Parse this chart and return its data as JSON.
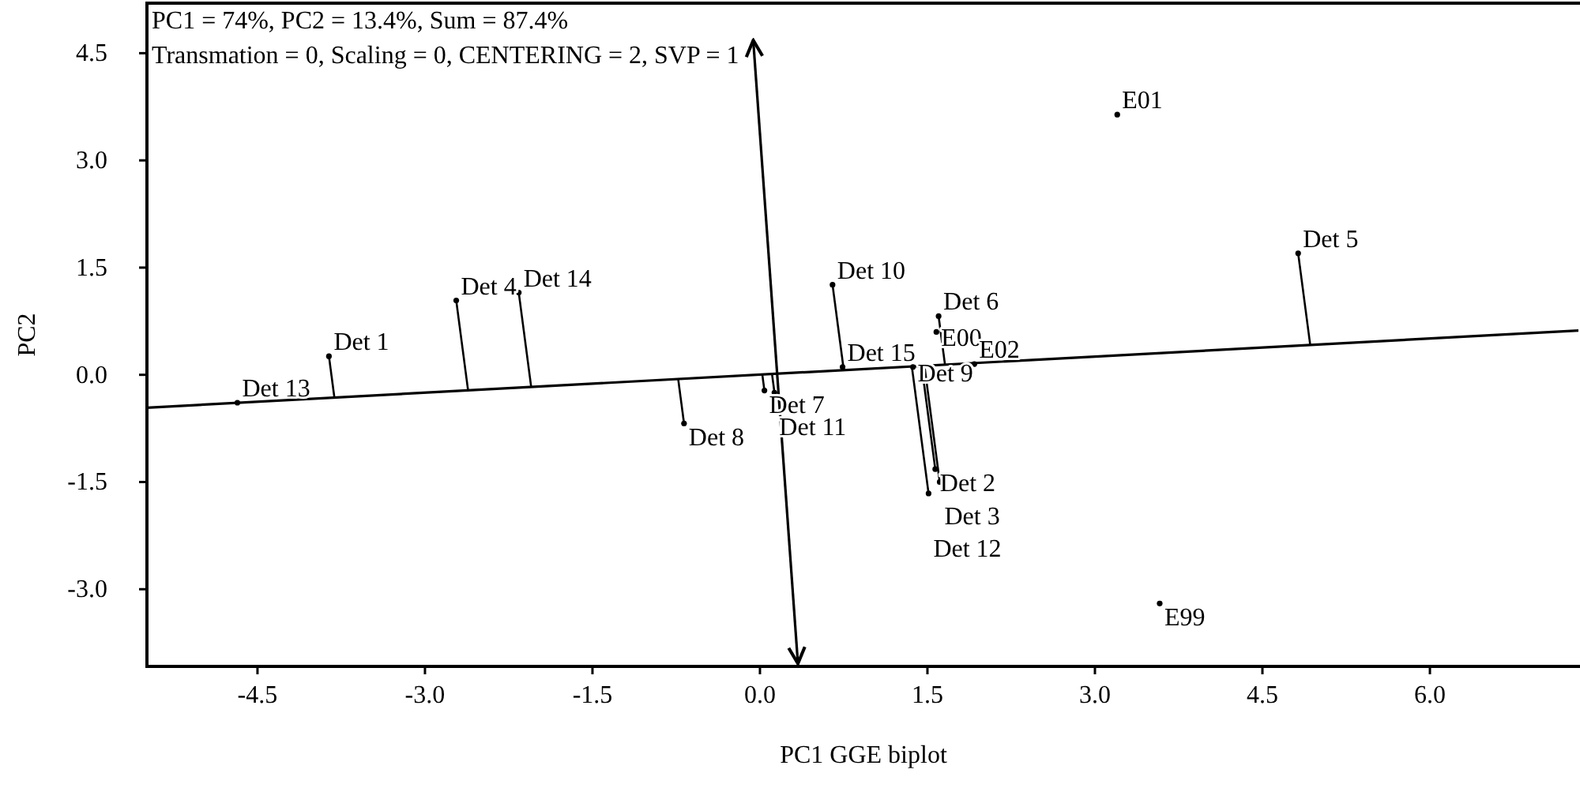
{
  "chart_data": {
    "type": "scatter",
    "xlabel": "PC1 GGE biplot",
    "ylabel": "PC2",
    "xlim": [
      -5.49,
      7.33
    ],
    "ylim": [
      -4.08,
      5.2
    ],
    "xticks": [
      {
        "value": -4.5,
        "label": "-4.5"
      },
      {
        "value": -3,
        "label": "-3.0"
      },
      {
        "value": -1.5,
        "label": "-1.5"
      },
      {
        "value": 0,
        "label": "0.0"
      },
      {
        "value": 1.5,
        "label": "1.5"
      },
      {
        "value": 3,
        "label": "3.0"
      },
      {
        "value": 4.5,
        "label": "4.5"
      },
      {
        "value": 6,
        "label": "6.0"
      }
    ],
    "yticks": [
      {
        "value": -3,
        "label": "-3.0"
      },
      {
        "value": -1.5,
        "label": "-1.5"
      },
      {
        "value": 0,
        "label": "0.0"
      },
      {
        "value": 1.5,
        "label": "1.5"
      },
      {
        "value": 3,
        "label": "3.0"
      },
      {
        "value": 4.5,
        "label": "4.5"
      }
    ],
    "marker": "circle",
    "series": [
      {
        "type": "line",
        "marker": "none",
        "color": "#000000",
        "x": [
          -5.49,
          7.33
        ],
        "values": [
          -0.46,
          0.62
        ]
      },
      {
        "type": "line",
        "marker": "none",
        "color": "#000000",
        "x": [
          -0.06,
          0.34
        ],
        "values": [
          4.68,
          -4.04
        ]
      },
      {
        "color": "#000000",
        "x": [
          -3.86,
          -4.68,
          -2.72,
          -2.16,
          -0.68,
          0.04,
          0.13,
          0.65,
          0.74,
          1.37,
          1.6,
          1.57,
          1.61,
          1.51,
          4.82
        ],
        "values": [
          0.26,
          -0.39,
          1.04,
          1.15,
          -0.68,
          -0.22,
          -0.25,
          1.26,
          0.11,
          0.11,
          0.82,
          -1.32,
          -1.5,
          -1.66,
          1.7
        ]
      },
      {
        "color": "#000000",
        "x": [
          3.2,
          1.58,
          1.92,
          3.58
        ],
        "values": [
          3.64,
          0.6,
          0.15,
          -3.2
        ]
      }
    ],
    "annotations": [
      "PC1 = 74%, PC2 = 13.4%, Sum = 87.4%",
      "Transmation = 0, Scaling = 0, CENTERING = 2, SVP = 1",
      {
        "text": "Det 1",
        "x": -3.86,
        "y": 0.26
      },
      {
        "text": "Det 13",
        "x": -4.68,
        "y": -0.39
      },
      {
        "text": "Det 4",
        "x": -2.72,
        "y": 1.04
      },
      {
        "text": "Det 14",
        "x": -2.16,
        "y": 1.15
      },
      {
        "text": "Det 8",
        "x": -0.68,
        "y": -0.68
      },
      {
        "text": "Det 7",
        "x": 0.04,
        "y": -0.22
      },
      {
        "text": "Det 11",
        "x": 0.13,
        "y": -0.25
      },
      {
        "text": "Det 10",
        "x": 0.65,
        "y": 1.26
      },
      {
        "text": "Det 15",
        "x": 0.74,
        "y": 0.11
      },
      {
        "text": "Det 9",
        "x": 1.37,
        "y": 0.11
      },
      {
        "text": "Det 6",
        "x": 1.6,
        "y": 0.82
      },
      {
        "text": "Det 2",
        "x": 1.57,
        "y": -1.32
      },
      {
        "text": "Det 3",
        "x": 1.61,
        "y": -1.5
      },
      {
        "text": "Det 12",
        "x": 1.51,
        "y": -1.66
      },
      {
        "text": "Det 5",
        "x": 4.82,
        "y": 1.7
      },
      {
        "text": "E01",
        "x": 3.2,
        "y": 3.64
      },
      {
        "text": "E00",
        "x": 1.58,
        "y": 0.6
      },
      {
        "text": "E02",
        "x": 1.92,
        "y": 0.15
      },
      {
        "text": "E99",
        "x": 3.58,
        "y": -3.2
      }
    ]
  }
}
